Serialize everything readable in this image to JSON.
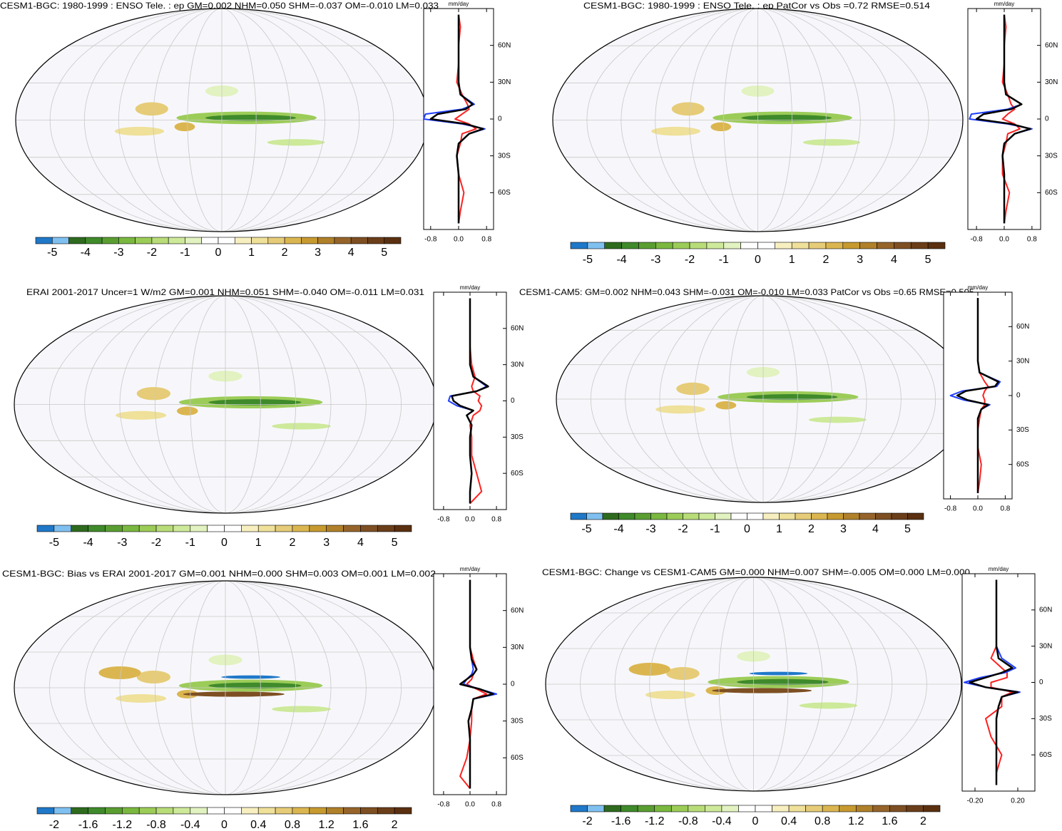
{
  "panels": [
    {
      "title": "CESM1-BGC: 1980-1999 : ENSO Tele. : ep GM=0.002 NHM=0.050 SHM=-0.037 OM=-0.010 LM=0.033",
      "colorbar": {
        "colors": [
          "#1f78c8",
          "#7fc0f0",
          "#2e6b1e",
          "#3f8a2a",
          "#5a9e32",
          "#7ab840",
          "#9ccc58",
          "#b8dc78",
          "#cde99a",
          "#e2f2c0",
          "#ffffff",
          "#ffffff",
          "#f7efc0",
          "#efe09a",
          "#e6cc78",
          "#dbb650",
          "#c79a30",
          "#b0802a",
          "#96642a",
          "#7d4f22",
          "#6b3e1a",
          "#5a3010"
        ],
        "ticks": [
          -5,
          -4,
          -3,
          -2,
          -1,
          0,
          1,
          2,
          3,
          4,
          5
        ]
      },
      "profile": {
        "unit": "mm/day",
        "xlim": [
          -1,
          1
        ],
        "ylim": [
          -90,
          90
        ],
        "xticks": [
          -0.8,
          {
            "value": 0,
            "label": "0.0"
          },
          0.8
        ],
        "yticks": [
          {
            "value": 60,
            "label": "60N"
          },
          {
            "value": 30,
            "label": "30N"
          },
          0,
          {
            "value": -30,
            "label": "30S"
          },
          {
            "value": -60,
            "label": "60S"
          }
        ],
        "lat": [
          -85,
          -75,
          -60,
          -45,
          -30,
          -20,
          -12,
          -8,
          -4,
          0,
          4,
          8,
          12,
          20,
          30,
          45,
          60,
          75,
          85
        ],
        "series": [
          {
            "color": "#ff2020",
            "values": [
              0,
              0.05,
              0.15,
              0,
              -0.05,
              0.05,
              0.1,
              0.5,
              0.3,
              -0.1,
              0.1,
              0.3,
              0.25,
              0.1,
              -0.05,
              0,
              0,
              0.05,
              0
            ]
          },
          {
            "color": "#1f3fff",
            "values": [
              0,
              0,
              0,
              0,
              -0.05,
              0,
              0.3,
              0.75,
              0.1,
              -1.0,
              -0.95,
              0.1,
              0.45,
              0.05,
              0,
              0,
              0,
              0,
              0
            ]
          },
          {
            "color": "#000000",
            "values": [
              0,
              0,
              0,
              0,
              -0.05,
              0,
              0.3,
              0.7,
              0.2,
              -0.8,
              -0.6,
              0.2,
              0.4,
              0.05,
              0,
              0,
              0,
              0,
              0
            ]
          }
        ]
      }
    },
    {
      "title": "CESM1-BGC: 1980-1999 : ENSO Tele. : ep PatCor vs Obs =0.72 RMSE=0.514",
      "colorbar": {
        "colors": [
          "#1f78c8",
          "#7fc0f0",
          "#2e6b1e",
          "#3f8a2a",
          "#5a9e32",
          "#7ab840",
          "#9ccc58",
          "#b8dc78",
          "#cde99a",
          "#e2f2c0",
          "#ffffff",
          "#ffffff",
          "#f7efc0",
          "#efe09a",
          "#e6cc78",
          "#dbb650",
          "#c79a30",
          "#b0802a",
          "#96642a",
          "#7d4f22",
          "#6b3e1a",
          "#5a3010"
        ],
        "ticks": [
          -5,
          -4,
          -3,
          -2,
          -1,
          0,
          1,
          2,
          3,
          4,
          5
        ]
      },
      "profile": {
        "unit": "mm/day",
        "xlim": [
          -1.05,
          1.05
        ],
        "ylim": [
          -90,
          90
        ],
        "xticks": [
          -0.8,
          {
            "value": 0,
            "label": "0.0"
          },
          0.8
        ],
        "yticks": [
          {
            "value": 60,
            "label": "60N"
          },
          {
            "value": 30,
            "label": "30N"
          },
          0,
          {
            "value": -30,
            "label": "30S"
          },
          {
            "value": -60,
            "label": "60S"
          }
        ],
        "lat": [
          -85,
          -75,
          -60,
          -45,
          -30,
          -20,
          -12,
          -8,
          -4,
          0,
          4,
          8,
          12,
          20,
          30,
          45,
          60,
          75,
          85
        ],
        "series": [
          {
            "color": "#ff2020",
            "values": [
              0,
              0.05,
              0.15,
              -0.05,
              -0.05,
              0.05,
              0.1,
              0.45,
              0.3,
              -0.05,
              0.1,
              0.3,
              0.2,
              0.1,
              -0.05,
              0,
              0,
              0.05,
              0
            ]
          },
          {
            "color": "#1f3fff",
            "values": [
              0,
              0,
              0,
              0,
              -0.05,
              0,
              0.3,
              0.8,
              0.1,
              -1.0,
              -0.95,
              0.1,
              0.5,
              0.05,
              0,
              0,
              0,
              0,
              0
            ]
          },
          {
            "color": "#000000",
            "values": [
              0,
              0,
              0,
              0,
              -0.05,
              0,
              0.3,
              0.75,
              0.2,
              -0.8,
              -0.6,
              0.2,
              0.5,
              0.05,
              0,
              0,
              0,
              0,
              0
            ]
          }
        ]
      }
    },
    {
      "title": "ERAI 2001-2017 Uncer=1 W/m2 GM=0.001 NHM=0.051 SHM=-0.040 OM=-0.011 LM=0.031",
      "colorbar": {
        "colors": [
          "#1f78c8",
          "#7fc0f0",
          "#2e6b1e",
          "#3f8a2a",
          "#5a9e32",
          "#7ab840",
          "#9ccc58",
          "#b8dc78",
          "#cde99a",
          "#e2f2c0",
          "#ffffff",
          "#ffffff",
          "#f7efc0",
          "#efe09a",
          "#e6cc78",
          "#dbb650",
          "#c79a30",
          "#b0802a",
          "#96642a",
          "#7d4f22",
          "#6b3e1a",
          "#5a3010"
        ],
        "ticks": [
          -5,
          -4,
          -3,
          -2,
          -1,
          0,
          1,
          2,
          3,
          4,
          5
        ]
      },
      "profile": {
        "unit": "mm/day",
        "xlim": [
          -1.1,
          1.1
        ],
        "ylim": [
          -90,
          90
        ],
        "xticks": [
          -0.8,
          {
            "value": 0,
            "label": "0.0"
          },
          0.8
        ],
        "yticks": [
          {
            "value": 60,
            "label": "60N"
          },
          {
            "value": 30,
            "label": "30N"
          },
          0,
          {
            "value": -30,
            "label": "30S"
          },
          {
            "value": -60,
            "label": "60S"
          }
        ],
        "lat": [
          -85,
          -75,
          -60,
          -45,
          -30,
          -20,
          -12,
          -8,
          -4,
          0,
          4,
          8,
          12,
          20,
          30,
          45,
          60,
          75,
          85
        ],
        "series": [
          {
            "color": "#ff2020",
            "values": [
              0,
              0.35,
              0.2,
              0.05,
              0.05,
              0,
              0.1,
              0.3,
              0.35,
              0.25,
              0.3,
              0.1,
              0.05,
              0.15,
              0.05,
              0,
              0,
              0,
              0
            ]
          },
          {
            "color": "#1f3fff",
            "values": [
              0,
              0,
              0.05,
              0,
              0,
              0.05,
              -0.1,
              0.1,
              -0.4,
              -0.65,
              -0.6,
              0.2,
              0.5,
              0.1,
              0,
              0,
              0,
              0,
              0
            ]
          },
          {
            "color": "#000000",
            "values": [
              0,
              0,
              0.05,
              0,
              0,
              0.05,
              -0.1,
              0.1,
              -0.3,
              -0.5,
              -0.55,
              0.2,
              0.55,
              0.1,
              0,
              0,
              0,
              0,
              0
            ]
          }
        ]
      }
    },
    {
      "title": "CESM1-CAM5: GM=0.002 NHM=0.043 SHM=-0.031 OM=-0.010 LM=0.033 PatCor vs Obs =0.65 RMSE=0.505",
      "colorbar": {
        "colors": [
          "#1f78c8",
          "#7fc0f0",
          "#2e6b1e",
          "#3f8a2a",
          "#5a9e32",
          "#7ab840",
          "#9ccc58",
          "#b8dc78",
          "#cde99a",
          "#e2f2c0",
          "#ffffff",
          "#ffffff",
          "#f7efc0",
          "#efe09a",
          "#e6cc78",
          "#dbb650",
          "#c79a30",
          "#b0802a",
          "#96642a",
          "#7d4f22",
          "#6b3e1a",
          "#5a3010"
        ],
        "ticks": [
          -5,
          -4,
          -3,
          -2,
          -1,
          0,
          1,
          2,
          3,
          4,
          5
        ]
      },
      "profile": {
        "unit": "mm/day",
        "xlim": [
          -1,
          1
        ],
        "ylim": [
          -90,
          90
        ],
        "xticks": [
          -0.8,
          {
            "value": 0,
            "label": "0.0"
          },
          0.8
        ],
        "yticks": [
          {
            "value": 60,
            "label": "60N"
          },
          {
            "value": 30,
            "label": "30N"
          },
          0,
          {
            "value": -30,
            "label": "30S"
          },
          {
            "value": -60,
            "label": "60S"
          }
        ],
        "lat": [
          -85,
          -75,
          -60,
          -45,
          -30,
          -20,
          -12,
          -8,
          -4,
          0,
          4,
          8,
          12,
          20,
          30,
          45,
          60,
          75,
          85
        ],
        "series": [
          {
            "color": "#ff2020",
            "values": [
              0,
              0.05,
              0.1,
              0,
              0,
              0.05,
              0.1,
              0.2,
              0.2,
              0.15,
              0.2,
              0.3,
              0.2,
              0.05,
              0,
              0,
              0,
              0,
              0
            ]
          },
          {
            "color": "#1f3fff",
            "values": [
              0,
              0,
              0,
              0,
              0,
              0,
              0.1,
              0.35,
              -0.4,
              -0.8,
              -0.45,
              0.55,
              0.65,
              0.05,
              0,
              0,
              0,
              0,
              0
            ]
          },
          {
            "color": "#000000",
            "values": [
              0,
              0,
              0,
              0,
              0,
              0,
              0.1,
              0.3,
              -0.3,
              -0.6,
              -0.35,
              0.5,
              0.6,
              0.05,
              0,
              0,
              0,
              0,
              0
            ]
          }
        ]
      }
    },
    {
      "title": "CESM1-BGC: Bias vs ERAI 2001-2017 GM=0.001 NHM=0.000 SHM=0.003 OM=0.001 LM=0.002",
      "colorbar": {
        "colors": [
          "#1f78c8",
          "#7fc0f0",
          "#2e6b1e",
          "#3f8a2a",
          "#5a9e32",
          "#7ab840",
          "#9ccc58",
          "#b8dc78",
          "#cde99a",
          "#e2f2c0",
          "#ffffff",
          "#ffffff",
          "#f7efc0",
          "#efe09a",
          "#e6cc78",
          "#dbb650",
          "#c79a30",
          "#b0802a",
          "#96642a",
          "#7d4f22",
          "#6b3e1a",
          "#5a3010"
        ],
        "ticks": [
          -2,
          -1.6,
          -1.2,
          -0.8,
          -0.4,
          0,
          0.4,
          0.8,
          1.2,
          1.6,
          2
        ]
      },
      "profile": {
        "unit": "mm/day",
        "xlim": [
          -1.1,
          1.1
        ],
        "ylim": [
          -90,
          90
        ],
        "xticks": [
          -0.8,
          {
            "value": 0,
            "label": "0.0"
          },
          0.8
        ],
        "yticks": [
          {
            "value": 60,
            "label": "60N"
          },
          {
            "value": 30,
            "label": "30N"
          },
          0,
          {
            "value": -30,
            "label": "30S"
          },
          {
            "value": -60,
            "label": "60S"
          }
        ],
        "lat": [
          -85,
          -75,
          -60,
          -45,
          -30,
          -20,
          -12,
          -8,
          -4,
          0,
          4,
          8,
          12,
          20,
          30,
          45,
          60,
          75,
          85
        ],
        "series": [
          {
            "color": "#ff2020",
            "values": [
              0,
              -0.3,
              -0.1,
              0,
              0.05,
              0.05,
              0.1,
              0.5,
              0.2,
              -0.1,
              0.05,
              0.1,
              0.2,
              0.1,
              0,
              0,
              0,
              0,
              0
            ]
          },
          {
            "color": "#1f3fff",
            "values": [
              0,
              0,
              0,
              0,
              -0.05,
              0.05,
              0.1,
              0.8,
              0.3,
              -0.2,
              -0.1,
              0.05,
              0.1,
              0.05,
              0,
              0,
              0,
              0,
              0
            ]
          },
          {
            "color": "#000000",
            "values": [
              0,
              0,
              0,
              0,
              -0.05,
              0.05,
              0.1,
              0.7,
              0.3,
              -0.3,
              -0.1,
              0.1,
              0.2,
              0.05,
              0,
              0,
              0,
              0,
              0
            ]
          }
        ]
      }
    },
    {
      "title": "CESM1-BGC: Change vs CESM1-CAM5 GM=0.000 NHM=0.007 SHM=-0.005 OM=0.000 LM=0.000",
      "colorbar": {
        "colors": [
          "#1f78c8",
          "#7fc0f0",
          "#2e6b1e",
          "#3f8a2a",
          "#5a9e32",
          "#7ab840",
          "#9ccc58",
          "#b8dc78",
          "#cde99a",
          "#e2f2c0",
          "#ffffff",
          "#ffffff",
          "#f7efc0",
          "#efe09a",
          "#e6cc78",
          "#dbb650",
          "#c79a30",
          "#b0802a",
          "#96642a",
          "#7d4f22",
          "#6b3e1a",
          "#5a3010"
        ],
        "ticks": [
          -2,
          -1.6,
          -1.2,
          -0.8,
          -0.4,
          0,
          0.4,
          0.8,
          1.2,
          1.6,
          2
        ]
      },
      "profile": {
        "unit": "mm/day",
        "xlim": [
          -0.32,
          0.36
        ],
        "ylim": [
          -90,
          90
        ],
        "xticks": [
          {
            "value": -0.2,
            "label": "-0.20"
          },
          {
            "value": 0.2,
            "label": "0.20"
          }
        ],
        "yticks": [
          {
            "value": 60,
            "label": "60N"
          },
          {
            "value": 30,
            "label": "30N"
          },
          0,
          {
            "value": -30,
            "label": "30S"
          },
          {
            "value": -60,
            "label": "60S"
          }
        ],
        "lat": [
          -85,
          -75,
          -60,
          -45,
          -30,
          -20,
          -12,
          -8,
          -4,
          0,
          4,
          8,
          12,
          20,
          30,
          45,
          60,
          75,
          85
        ],
        "series": [
          {
            "color": "#ff2020",
            "values": [
              0,
              0,
              0.05,
              -0.05,
              -0.1,
              0.05,
              0.05,
              0.15,
              -0.05,
              -0.05,
              0.1,
              0.1,
              0.05,
              -0.05,
              0,
              0,
              0,
              0,
              0
            ]
          },
          {
            "color": "#1f3fff",
            "values": [
              0,
              0,
              0,
              0,
              0,
              0.02,
              0.05,
              0.22,
              -0.1,
              -0.3,
              -0.15,
              0.08,
              0.18,
              0.05,
              0,
              0,
              0,
              0,
              0
            ]
          },
          {
            "color": "#000000",
            "values": [
              0,
              0,
              0,
              0,
              0,
              0.02,
              0.05,
              0.2,
              -0.1,
              -0.25,
              -0.1,
              0.05,
              0.15,
              0.02,
              0,
              0,
              0,
              0,
              0
            ]
          }
        ]
      }
    }
  ]
}
